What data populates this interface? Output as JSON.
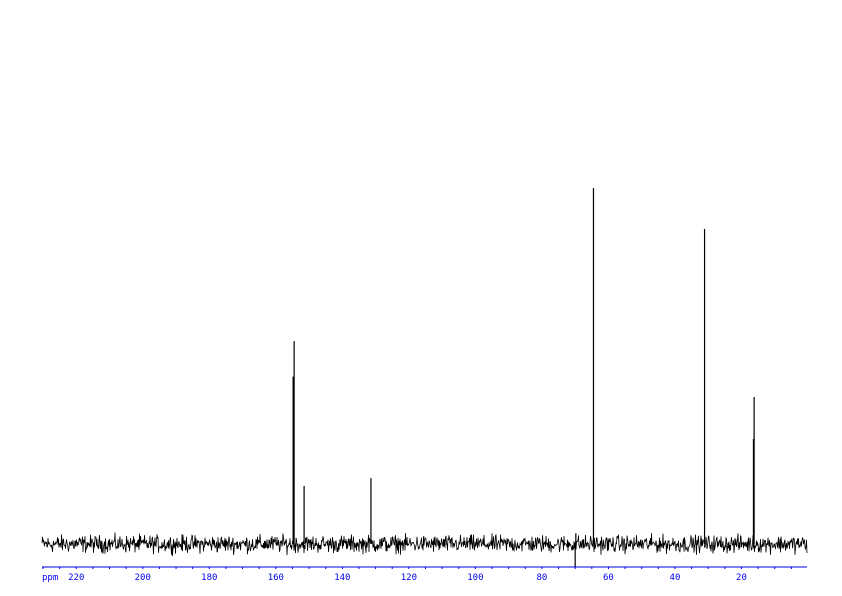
{
  "chart_data": {
    "type": "line",
    "title": "",
    "xlabel": "ppm",
    "ylabel": "",
    "xlim": [
      230.3,
      0.3
    ],
    "x_reversed": true,
    "ylim": [
      -0.07,
      1.0
    ],
    "grid": false,
    "x_ticks_major": [
      220,
      200,
      180,
      160,
      140,
      120,
      100,
      80,
      60,
      40,
      20
    ],
    "x_tick_labels": [
      "220",
      "200",
      "180",
      "160",
      "140",
      "120",
      "100",
      "80",
      "60",
      "40",
      "20"
    ],
    "x_minor_step": 5,
    "noise_level": 0.012,
    "peaks": [
      {
        "ppm": 154.8,
        "intensity": 0.47
      },
      {
        "ppm": 154.5,
        "intensity": 0.57
      },
      {
        "ppm": 151.5,
        "intensity": 0.163
      },
      {
        "ppm": 131.4,
        "intensity": 0.185
      },
      {
        "ppm": 70.0,
        "intensity": -0.065
      },
      {
        "ppm": 69.8,
        "intensity": 0.03
      },
      {
        "ppm": 64.5,
        "intensity": 1.0
      },
      {
        "ppm": 31.1,
        "intensity": 0.885
      },
      {
        "ppm": 16.4,
        "intensity": 0.295
      },
      {
        "ppm": 16.2,
        "intensity": 0.413
      }
    ],
    "colors": {
      "spectrum": "#000000",
      "axis": "#0000ee"
    }
  }
}
